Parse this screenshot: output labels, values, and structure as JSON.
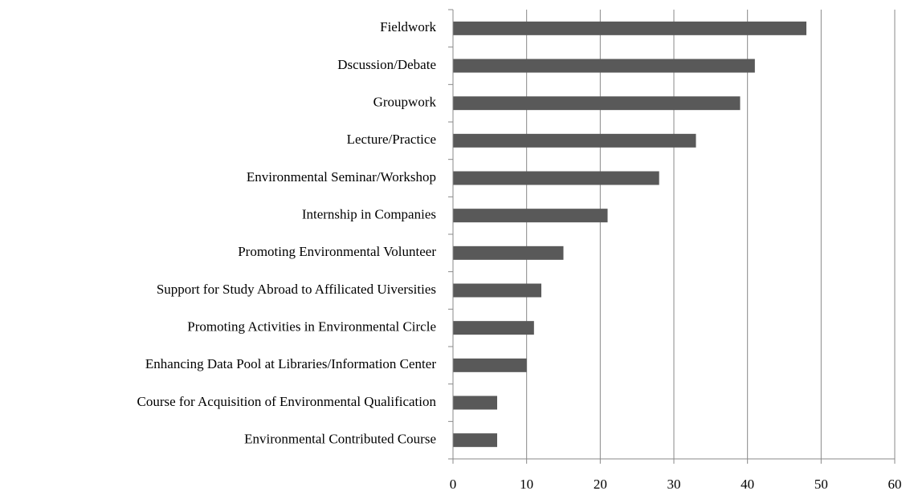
{
  "chart_data": {
    "type": "barh",
    "categories": [
      "Fieldwork",
      "Dscussion/Debate",
      "Groupwork",
      "Lecture/Practice",
      "Environmental Seminar/Workshop",
      "Internship in Companies",
      "Promoting Environmental Volunteer",
      "Support for Study Abroad to Affilicated  Uiversities",
      "Promoting Activities in Environmental Circle",
      "Enhancing Data Pool at Libraries/Information Center",
      "Course for Acquisition of Environmental Qualification",
      "Environmental Contributed Course"
    ],
    "values": [
      48,
      41,
      39,
      33,
      28,
      21,
      15,
      12,
      11,
      10,
      6,
      6
    ],
    "color": "#595959",
    "xlim": [
      0,
      60
    ],
    "xticks": [
      0,
      10,
      20,
      30,
      40,
      50,
      60
    ],
    "grid": true
  }
}
